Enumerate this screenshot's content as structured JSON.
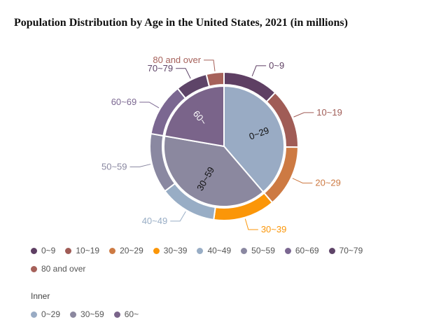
{
  "title": "Population Distribution by Age in the United States, 2021 (in millions)",
  "chart_data": {
    "type": "pie",
    "outer": {
      "categories": [
        "0~9",
        "10~19",
        "20~29",
        "30~39",
        "40~49",
        "50~59",
        "60~69",
        "70~79",
        "80 and over"
      ],
      "values": [
        39.5,
        42.5,
        44.0,
        44.0,
        40.5,
        42.5,
        37.5,
        22.5,
        12.5
      ],
      "colors": [
        "#5e3f63",
        "#a05c56",
        "#cd7a43",
        "#fb9608",
        "#98adc5",
        "#8a88a1",
        "#7b6791",
        "#5e4468",
        "#a6615a"
      ]
    },
    "inner": {
      "legend_title": "Inner",
      "categories": [
        "0~29",
        "30~59",
        "60~"
      ],
      "values": [
        126,
        127,
        72.5
      ],
      "colors": [
        "#99abc4",
        "#8b889f",
        "#7a648a"
      ]
    }
  }
}
